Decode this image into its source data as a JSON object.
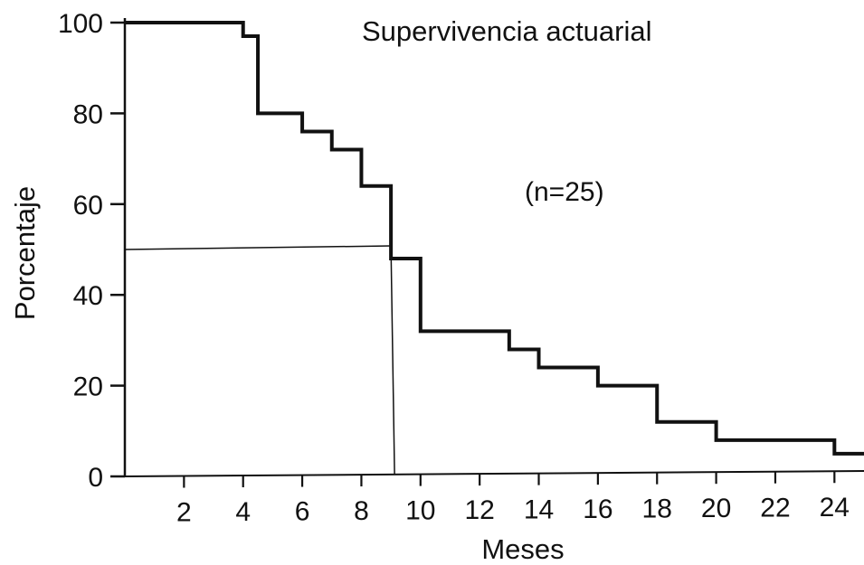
{
  "chart_data": {
    "type": "line",
    "step": true,
    "title": "Supervivencia actuarial",
    "annotation": "(n=25)",
    "xlabel": "Meses",
    "ylabel": "Porcentaje",
    "xlim": [
      0,
      25
    ],
    "ylim": [
      0,
      100
    ],
    "x_ticks": [
      2,
      4,
      6,
      8,
      10,
      12,
      14,
      16,
      18,
      20,
      22,
      24
    ],
    "y_ticks": [
      0,
      20,
      40,
      60,
      80,
      100
    ],
    "grid": false,
    "series": [
      {
        "x": [
          0,
          4,
          4.5,
          6,
          7,
          8,
          9,
          10,
          13,
          14,
          16,
          18,
          20,
          24,
          25
        ],
        "y": [
          100,
          97,
          80,
          76,
          72,
          64,
          48,
          32,
          28,
          24,
          20,
          12,
          8,
          5,
          5
        ]
      }
    ],
    "median_marker": {
      "x": 9,
      "y": 50
    }
  }
}
